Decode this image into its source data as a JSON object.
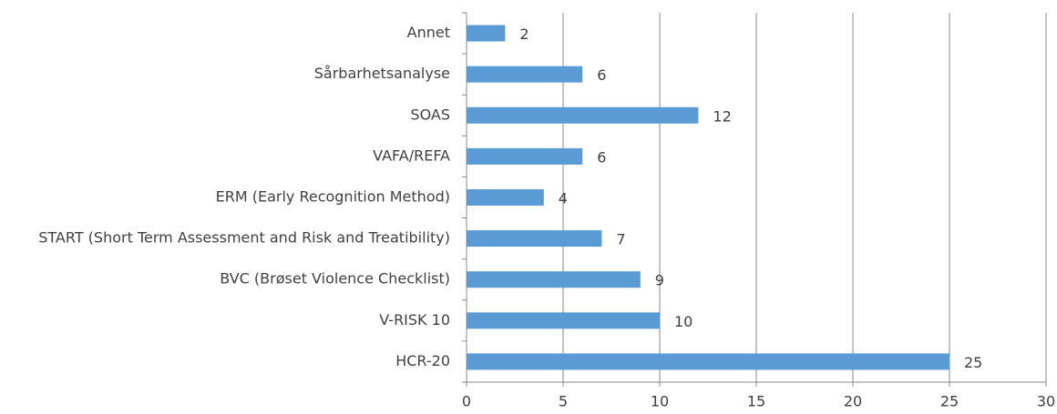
{
  "chart_data": {
    "type": "barh",
    "categories": [
      "Annet",
      "Sårbarhetsanalyse",
      "SOAS",
      "VAFA/REFA",
      "ERM (Early Recognition Method)",
      "START (Short Term Assessment and Risk and Treatibility)",
      "BVC (Brøset Violence Checklist)",
      "V-RISK 10",
      "HCR-20"
    ],
    "values": [
      2,
      6,
      12,
      6,
      4,
      7,
      9,
      10,
      25
    ],
    "color": "#5b9bd5",
    "xlim": [
      0,
      30
    ],
    "xticks": [
      0,
      5,
      10,
      15,
      20,
      25,
      30
    ],
    "grid": true
  }
}
